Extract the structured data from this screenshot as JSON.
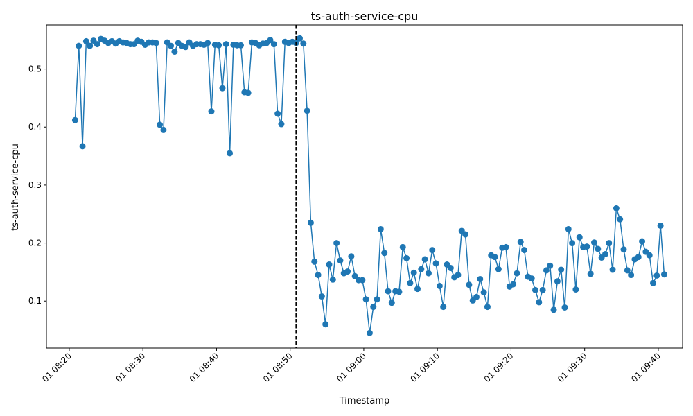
{
  "chart_data": {
    "type": "line",
    "title": "ts-auth-service-cpu",
    "xlabel": "Timestamp",
    "ylabel": "ts-auth-service-cpu",
    "x_ticks": [
      "01 08:20",
      "01 08:30",
      "01 08:40",
      "01 08:50",
      "01 09:00",
      "01 09:10",
      "01 09:20",
      "01 09:30",
      "01 09:40"
    ],
    "y_ticks": [
      "0.1",
      "0.2",
      "0.3",
      "0.4",
      "0.5"
    ],
    "xlim_minutes": [
      -3.1,
      83.3
    ],
    "ylim": [
      0.019,
      0.576
    ],
    "grid": false,
    "line_color": "#1f77b4",
    "vline": {
      "x_minutes": 30.8,
      "style": "dashed",
      "color": "#000000"
    },
    "start_time": "01 08:20",
    "interval_minutes": 0.5,
    "series": [
      {
        "values": [
          0.412,
          0.54,
          0.367,
          0.548,
          0.54,
          0.549,
          0.543,
          0.552,
          0.549,
          0.545,
          0.548,
          0.544,
          0.548,
          0.546,
          0.545,
          0.543,
          0.543,
          0.549,
          0.547,
          0.542,
          0.546,
          0.546,
          0.545,
          0.404,
          0.395,
          0.546,
          0.54,
          0.53,
          0.545,
          0.54,
          0.538,
          0.546,
          0.54,
          0.543,
          0.543,
          0.542,
          0.545,
          0.427,
          0.542,
          0.541,
          0.467,
          0.543,
          0.355,
          0.542,
          0.541,
          0.541,
          0.46,
          0.459,
          0.546,
          0.545,
          0.541,
          0.544,
          0.545,
          0.55,
          0.543,
          0.423,
          0.405,
          0.547,
          0.545,
          0.547,
          0.545,
          0.553,
          0.544,
          0.428,
          0.235,
          0.168,
          0.145,
          0.108,
          0.06,
          0.163,
          0.137,
          0.2,
          0.17,
          0.148,
          0.151,
          0.177,
          0.143,
          0.136,
          0.136,
          0.103,
          0.045,
          0.09,
          0.103,
          0.224,
          0.183,
          0.117,
          0.097,
          0.117,
          0.116,
          0.193,
          0.174,
          0.131,
          0.149,
          0.121,
          0.155,
          0.172,
          0.148,
          0.188,
          0.165,
          0.126,
          0.09,
          0.163,
          0.157,
          0.141,
          0.145,
          0.221,
          0.215,
          0.128,
          0.101,
          0.107,
          0.138,
          0.115,
          0.09,
          0.179,
          0.176,
          0.155,
          0.192,
          0.193,
          0.125,
          0.129,
          0.148,
          0.202,
          0.188,
          0.142,
          0.139,
          0.119,
          0.098,
          0.119,
          0.153,
          0.161,
          0.085,
          0.134,
          0.154,
          0.089,
          0.224,
          0.2,
          0.12,
          0.21,
          0.193,
          0.194,
          0.147,
          0.201,
          0.19,
          0.175,
          0.181,
          0.2,
          0.154,
          0.26,
          0.241,
          0.189,
          0.153,
          0.145,
          0.172,
          0.176,
          0.203,
          0.185,
          0.179,
          0.131,
          0.144,
          0.23,
          0.146
        ]
      }
    ]
  }
}
